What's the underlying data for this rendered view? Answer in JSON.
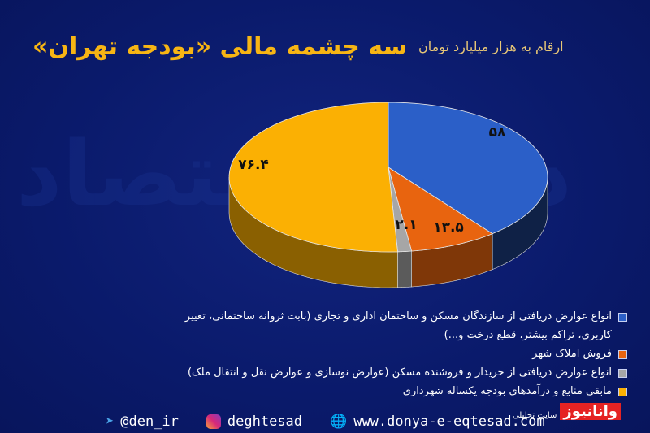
{
  "header": {
    "title": "سه چشمه مالی «بودجه تهران»",
    "subtitle": "ارقام به هزار میلیارد تومان"
  },
  "watermark": "دنیای اقتصاد",
  "chart_data": {
    "type": "pie",
    "style": "3d",
    "start": "top, clockwise",
    "values": [
      58,
      13.5,
      2.1,
      76.4
    ],
    "data_labels": [
      "۵۸",
      "۱۳.۵",
      "۲.۱",
      "۷۶.۴"
    ],
    "colors": [
      "#2b5fc8",
      "#e8640f",
      "#a6a6a6",
      "#fbb003"
    ],
    "legend_placement": "bottom",
    "legend": [
      "انواع عوارض دریافتی از سازندگان مسکن و ساختمان اداری و تجاری (بابت ثروانه ساختمانی، تغییر کاربری، تراکم بیشتر، قطع درخت و...)",
      "فروش املاک شهر",
      "انواع عوارض دریافتی از خریدار و فروشنده مسکن (عوارض نوسازی و عوارض نقل و انتقال ملک)",
      "مابقی منابع و درآمدهای بودجه یکساله شهرداری"
    ]
  },
  "footer": {
    "telegram": "@den_ir",
    "instagram": "deghtesad",
    "website": "www.donya-e-eqtesad.com"
  },
  "logo": {
    "name": "وانانیوز",
    "tagline": "سایت تحلیلی"
  }
}
